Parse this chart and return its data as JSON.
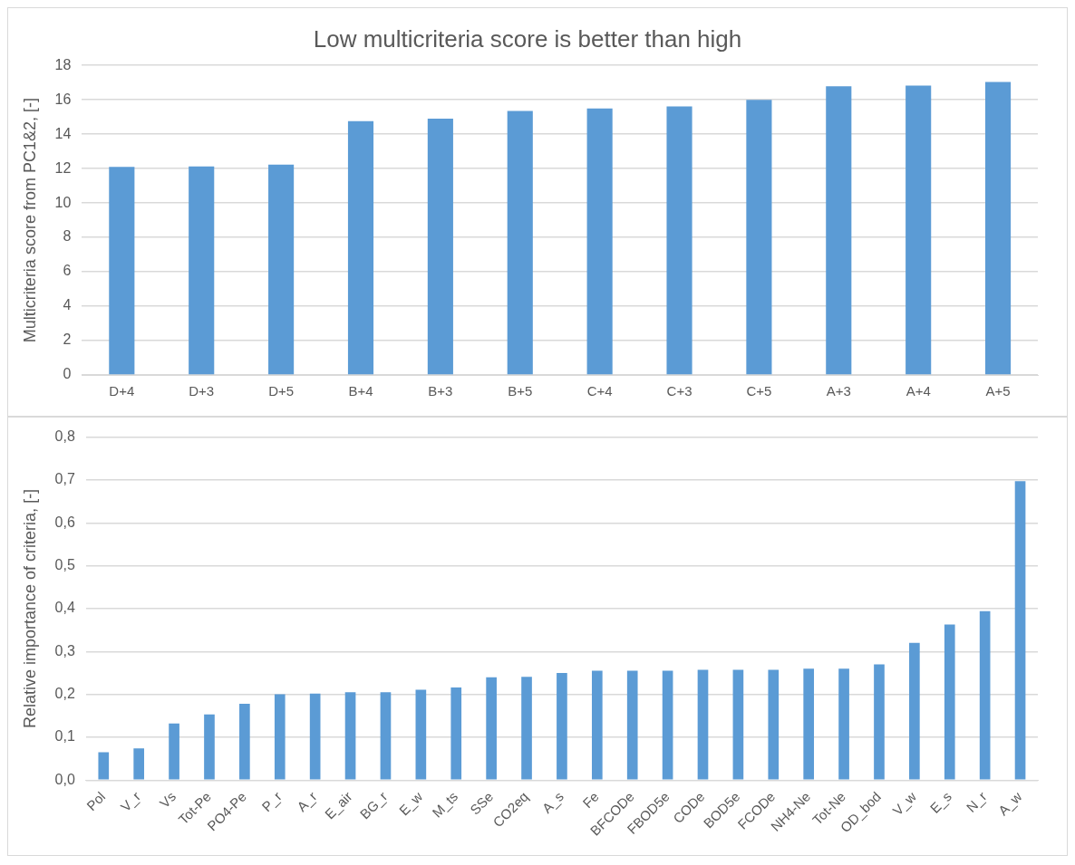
{
  "chart_data": [
    {
      "type": "bar",
      "title": "Low multicriteria score is better than high",
      "ylabel": "Multicriteria score from PC1&2, [-]",
      "categories": [
        "D+4",
        "D+3",
        "D+5",
        "B+4",
        "B+3",
        "B+5",
        "C+4",
        "C+3",
        "C+5",
        "A+3",
        "A+4",
        "A+5"
      ],
      "values": [
        12.1,
        12.13,
        12.23,
        14.76,
        14.9,
        15.35,
        15.49,
        15.62,
        15.99,
        16.78,
        16.82,
        17.04
      ],
      "color": "#5b9bd5",
      "ylim": [
        0,
        18
      ],
      "yticks": [
        0,
        2,
        4,
        6,
        8,
        10,
        12,
        14,
        16,
        18
      ],
      "grid": "y",
      "legend": false
    },
    {
      "type": "bar",
      "ylabel": "Relative importance of criteria, [-]",
      "categories": [
        "Pol",
        "V_r",
        "Vs",
        "Tot-Pe",
        "PO4-Pe",
        "P_r",
        "A_r",
        "E_air",
        "BG_r",
        "E_w",
        "M_ts",
        "SSe",
        "CO2eq",
        "A_s",
        "Fe",
        "BFCODe",
        "FBOD5e",
        "CODe",
        "BOD5e",
        "FCODe",
        "NH4-Ne",
        "Tot-Ne",
        "OD_bod",
        "V_w",
        "E_s",
        "N_r",
        "A_w"
      ],
      "values": [
        0.065,
        0.074,
        0.132,
        0.153,
        0.178,
        0.2,
        0.202,
        0.205,
        0.205,
        0.211,
        0.216,
        0.24,
        0.241,
        0.25,
        0.255,
        0.255,
        0.255,
        0.257,
        0.257,
        0.257,
        0.26,
        0.26,
        0.27,
        0.32,
        0.363,
        0.394,
        0.697
      ],
      "color": "#5b9bd5",
      "ylim": [
        0,
        0.8
      ],
      "yticks": [
        {
          "value": 0,
          "label": "0,0"
        },
        {
          "value": 0.1,
          "label": "0,1"
        },
        {
          "value": 0.2,
          "label": "0,2"
        },
        {
          "value": 0.3,
          "label": "0,3"
        },
        {
          "value": 0.4,
          "label": "0,4"
        },
        {
          "value": 0.5,
          "label": "0,5"
        },
        {
          "value": 0.6,
          "label": "0,6"
        },
        {
          "value": 0.7,
          "label": "0,7"
        },
        {
          "value": 0.8,
          "label": "0,8"
        }
      ],
      "grid": "y",
      "legend": false
    }
  ]
}
